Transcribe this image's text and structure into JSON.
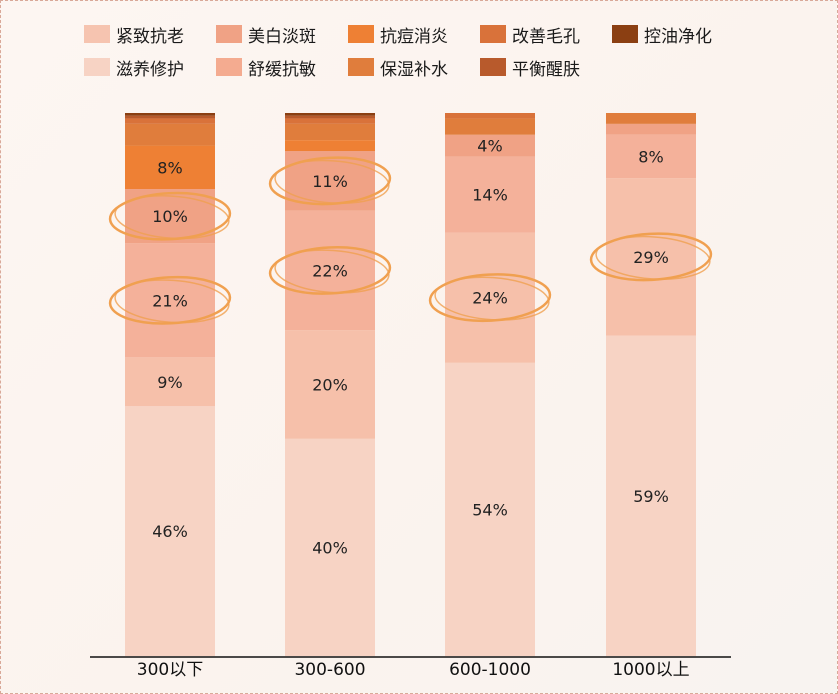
{
  "colors": {
    "circle": "#f0a050",
    "axis": "#111111"
  },
  "chart_data": {
    "type": "bar",
    "stacked": true,
    "xlabel": "",
    "ylabel": "",
    "ylim": [
      0,
      100
    ],
    "categories": [
      "300以下",
      "300-600",
      "600-1000",
      "1000以上"
    ],
    "series": [
      {
        "name": "滋养修护",
        "color": "#f7d3c4",
        "values": [
          46,
          40,
          54,
          59
        ],
        "labels": [
          "46%",
          "40%",
          "54%",
          "59%"
        ]
      },
      {
        "name": "舒缓抗敏",
        "color": "#f6c0aa",
        "values": [
          9,
          20,
          24,
          29
        ],
        "labels": [
          "9%",
          "20%",
          "24%",
          "29%"
        ]
      },
      {
        "name": "紧致抗老",
        "color": "#f4b19a",
        "values": [
          21,
          22,
          14,
          8
        ],
        "labels": [
          "21%",
          "22%",
          "14%",
          "8%"
        ]
      },
      {
        "name": "美白淡斑",
        "color": "#f0a285",
        "values": [
          10,
          11,
          4,
          2
        ],
        "labels": [
          "10%",
          "11%",
          "4%",
          ""
        ]
      },
      {
        "name": "抗痘消炎",
        "color": "#ee8034",
        "values": [
          8,
          2,
          0,
          0
        ],
        "labels": [
          "8%",
          "",
          "",
          ""
        ]
      },
      {
        "name": "保湿补水",
        "color": "#e07d3c",
        "values": [
          4,
          3,
          3,
          2
        ],
        "labels": [
          "",
          "",
          "",
          ""
        ]
      },
      {
        "name": "改善毛孔",
        "color": "#d9723a",
        "values": [
          1,
          1,
          1,
          0
        ],
        "labels": [
          "",
          "",
          "",
          ""
        ]
      },
      {
        "name": "平衡醒肤",
        "color": "#b85a2c",
        "values": [
          0.5,
          0.5,
          0,
          0
        ],
        "labels": [
          "",
          "",
          "",
          ""
        ]
      },
      {
        "name": "控油净化",
        "color": "#8b3f12",
        "values": [
          0.5,
          0.5,
          0,
          0
        ],
        "labels": [
          "",
          "",
          "",
          ""
        ]
      }
    ],
    "highlighted": [
      {
        "category": "300以下",
        "series": "美白淡斑"
      },
      {
        "category": "300以下",
        "series": "紧致抗老"
      },
      {
        "category": "300-600",
        "series": "美白淡斑"
      },
      {
        "category": "300-600",
        "series": "紧致抗老"
      },
      {
        "category": "600-1000",
        "series": "舒缓抗敏"
      },
      {
        "category": "1000以上",
        "series": "舒缓抗敏"
      }
    ],
    "legend": {
      "placement": "top",
      "rows": [
        [
          {
            "name": "紧致抗老",
            "color": "#f6c4b0"
          },
          {
            "name": "美白淡斑",
            "color": "#f0a285"
          },
          {
            "name": "抗痘消炎",
            "color": "#ee8034"
          },
          {
            "name": "改善毛孔",
            "color": "#d9723a"
          },
          {
            "name": "控油净化",
            "color": "#8b3f12"
          }
        ],
        [
          {
            "name": "滋养修护",
            "color": "#f7d3c4"
          },
          {
            "name": "舒缓抗敏",
            "color": "#f4ab90"
          },
          {
            "name": "保湿补水",
            "color": "#e07d3c"
          },
          {
            "name": "平衡醒肤",
            "color": "#b85a2c"
          }
        ]
      ]
    }
  }
}
